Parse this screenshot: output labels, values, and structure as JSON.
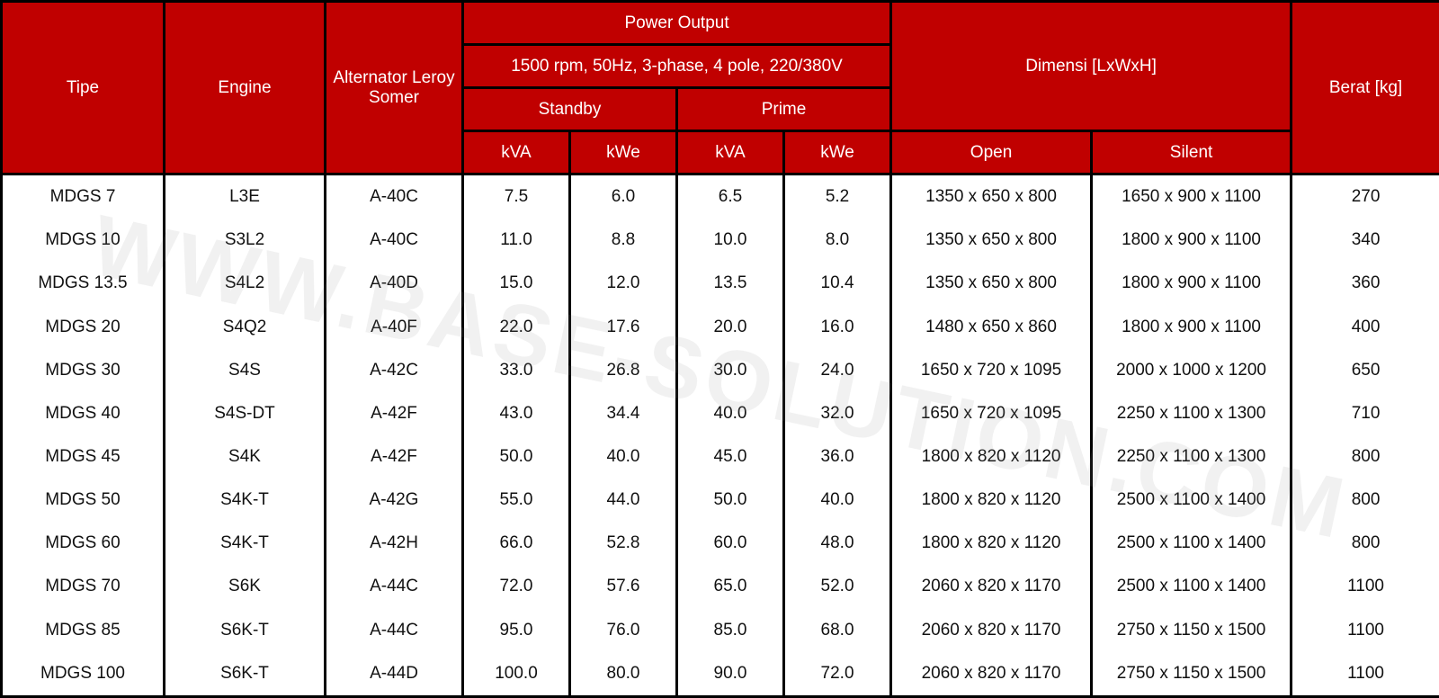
{
  "header": {
    "tipe": "Tipe",
    "engine": "Engine",
    "alternator": "Alternator Leroy Somer",
    "power_output": "Power Output",
    "power_spec": "1500 rpm, 50Hz, 3-phase, 4 pole, 220/380V",
    "standby": "Standby",
    "prime": "Prime",
    "standby_kva": "kVA",
    "standby_kwe": "kWe",
    "prime_kva": "kVA",
    "prime_kwe": "kWe",
    "dimensi": "Dimensi [LxWxH]",
    "open": "Open",
    "silent": "Silent",
    "berat": "Berat [kg]"
  },
  "rows": [
    {
      "tipe": "MDGS 7",
      "engine": "L3E",
      "alternator": "A-40C",
      "standby_kva": "7.5",
      "standby_kwe": "6.0",
      "prime_kva": "6.5",
      "prime_kwe": "5.2",
      "open": "1350 x 650 x 800",
      "silent": "1650 x 900 x 1100",
      "berat": "270"
    },
    {
      "tipe": "MDGS 10",
      "engine": "S3L2",
      "alternator": "A-40C",
      "standby_kva": "11.0",
      "standby_kwe": "8.8",
      "prime_kva": "10.0",
      "prime_kwe": "8.0",
      "open": "1350 x 650 x 800",
      "silent": "1800 x 900 x 1100",
      "berat": "340"
    },
    {
      "tipe": "MDGS 13.5",
      "engine": "S4L2",
      "alternator": "A-40D",
      "standby_kva": "15.0",
      "standby_kwe": "12.0",
      "prime_kva": "13.5",
      "prime_kwe": "10.4",
      "open": "1350 x 650 x 800",
      "silent": "1800 x 900 x 1100",
      "berat": "360"
    },
    {
      "tipe": "MDGS 20",
      "engine": "S4Q2",
      "alternator": "A-40F",
      "standby_kva": "22.0",
      "standby_kwe": "17.6",
      "prime_kva": "20.0",
      "prime_kwe": "16.0",
      "open": "1480 x 650 x 860",
      "silent": "1800 x 900 x 1100",
      "berat": "400"
    },
    {
      "tipe": "MDGS 30",
      "engine": "S4S",
      "alternator": "A-42C",
      "standby_kva": "33.0",
      "standby_kwe": "26.8",
      "prime_kva": "30.0",
      "prime_kwe": "24.0",
      "open": "1650 x 720 x 1095",
      "silent": "2000 x 1000 x 1200",
      "berat": "650"
    },
    {
      "tipe": "MDGS 40",
      "engine": "S4S-DT",
      "alternator": "A-42F",
      "standby_kva": "43.0",
      "standby_kwe": "34.4",
      "prime_kva": "40.0",
      "prime_kwe": "32.0",
      "open": "1650 x 720 x 1095",
      "silent": "2250 x 1100 x 1300",
      "berat": "710"
    },
    {
      "tipe": "MDGS 45",
      "engine": "S4K",
      "alternator": "A-42F",
      "standby_kva": "50.0",
      "standby_kwe": "40.0",
      "prime_kva": "45.0",
      "prime_kwe": "36.0",
      "open": "1800 x 820 x 1120",
      "silent": "2250 x 1100 x 1300",
      "berat": "800"
    },
    {
      "tipe": "MDGS 50",
      "engine": "S4K-T",
      "alternator": "A-42G",
      "standby_kva": "55.0",
      "standby_kwe": "44.0",
      "prime_kva": "50.0",
      "prime_kwe": "40.0",
      "open": "1800 x 820 x 1120",
      "silent": "2500 x 1100 x 1400",
      "berat": "800"
    },
    {
      "tipe": "MDGS 60",
      "engine": "S4K-T",
      "alternator": "A-42H",
      "standby_kva": "66.0",
      "standby_kwe": "52.8",
      "prime_kva": "60.0",
      "prime_kwe": "48.0",
      "open": "1800 x 820 x 1120",
      "silent": "2500 x 1100 x 1400",
      "berat": "800"
    },
    {
      "tipe": "MDGS 70",
      "engine": "S6K",
      "alternator": "A-44C",
      "standby_kva": "72.0",
      "standby_kwe": "57.6",
      "prime_kva": "65.0",
      "prime_kwe": "52.0",
      "open": "2060 x 820 x 1170",
      "silent": "2500 x 1100 x 1400",
      "berat": "1100"
    },
    {
      "tipe": "MDGS 85",
      "engine": "S6K-T",
      "alternator": "A-44C",
      "standby_kva": "95.0",
      "standby_kwe": "76.0",
      "prime_kva": "85.0",
      "prime_kwe": "68.0",
      "open": "2060 x 820 x 1170",
      "silent": "2750 x 1150 x 1500",
      "berat": "1100"
    },
    {
      "tipe": "MDGS 100",
      "engine": "S6K-T",
      "alternator": "A-44D",
      "standby_kva": "100.0",
      "standby_kwe": "80.0",
      "prime_kva": "90.0",
      "prime_kwe": "72.0",
      "open": "2060 x 820 x 1170",
      "silent": "2750 x 1150 x 1500",
      "berat": "1100"
    }
  ],
  "watermark": "WWW.BASE-SOLUTION.COM",
  "colors": {
    "header_bg": "#c00000",
    "header_text": "#ffffff",
    "border": "#000000"
  }
}
